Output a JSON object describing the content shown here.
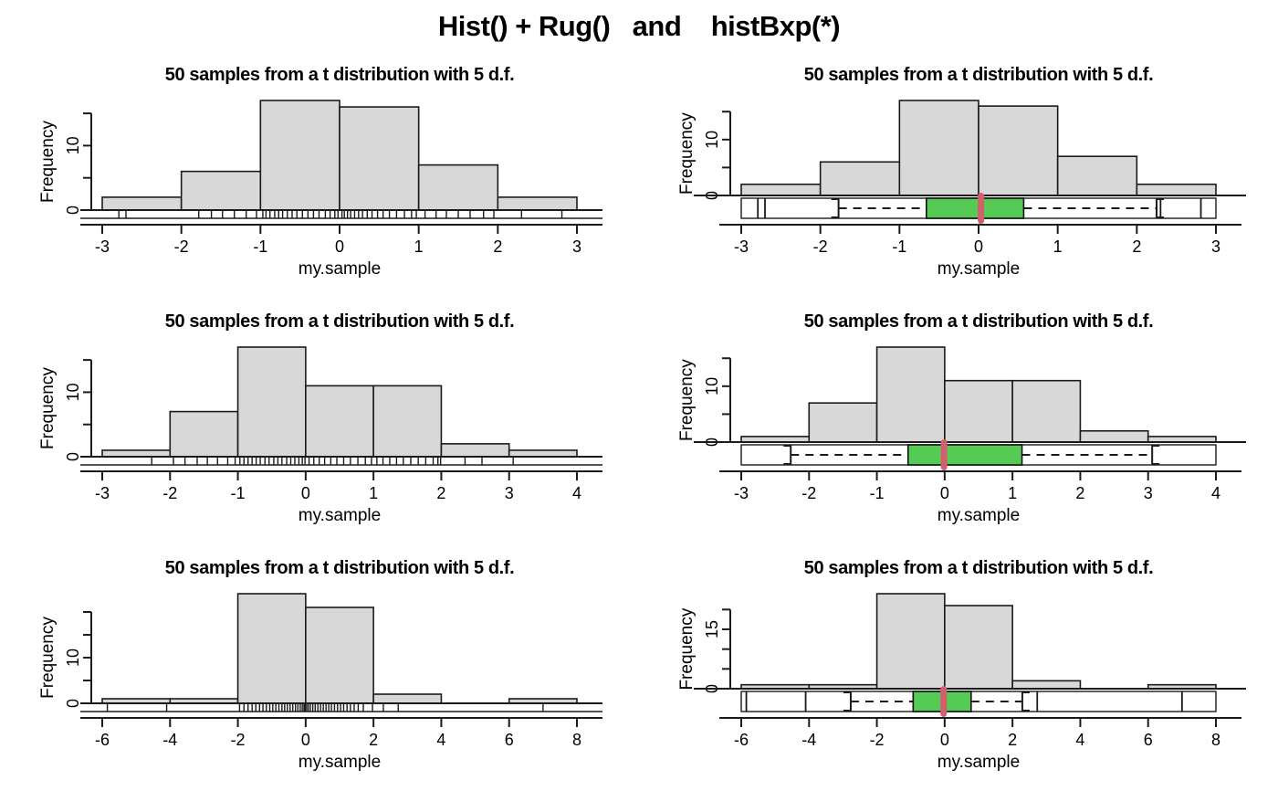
{
  "main_title": "Hist() + Rug()   and    histBxp(*)",
  "panel_title": "50 samples from a t distribution with 5 d.f.",
  "axes": {
    "xlabel": "my.sample",
    "ylabel": "Frequency"
  },
  "colors": {
    "background": "#ffffff",
    "bar_fill": "#d8d8d8",
    "bar_border": "#1b1b1b",
    "axis_color": "#1b1b1b",
    "box_fill": "#55cb55",
    "box_border": "#111111",
    "median_color": "#d25f6e",
    "range_box_fill": "#ffffff"
  },
  "chart_data": [
    {
      "id": "hist-rug-t5-row1",
      "type": "bar",
      "variant": "hist_rug",
      "row": 1,
      "col": 1,
      "title": "50 samples from a t distribution with 5 d.f.",
      "xlabel": "my.sample",
      "ylabel": "Frequency",
      "breaks": [
        -3,
        -2,
        -1,
        0,
        1,
        2,
        3
      ],
      "counts": [
        2,
        6,
        17,
        16,
        7,
        2
      ],
      "x_ticks": [
        -3,
        -2,
        -1,
        0,
        1,
        2,
        3
      ],
      "y_ticks": [
        0,
        5,
        10,
        15
      ],
      "y_tick_labels": [
        {
          "v": 0,
          "t": "0"
        },
        {
          "v": 10,
          "t": "10"
        }
      ],
      "y_max": 17,
      "samples": [
        -2.79,
        -2.7,
        -1.78,
        -1.62,
        -1.48,
        -1.33,
        -1.18,
        -1.05,
        -0.97,
        -0.93,
        -0.88,
        -0.82,
        -0.77,
        -0.72,
        -0.66,
        -0.6,
        -0.54,
        -0.47,
        -0.4,
        -0.33,
        -0.26,
        -0.18,
        -0.12,
        -0.06,
        -0.02,
        0.03,
        0.06,
        0.1,
        0.14,
        0.19,
        0.24,
        0.29,
        0.35,
        0.41,
        0.48,
        0.55,
        0.63,
        0.72,
        0.82,
        0.91,
        0.97,
        1.08,
        1.22,
        1.35,
        1.5,
        1.65,
        1.82,
        1.95,
        2.3,
        2.81
      ]
    },
    {
      "id": "histbxp-t5-row1",
      "type": "bar",
      "variant": "hist_boxplot",
      "row": 1,
      "col": 2,
      "title": "50 samples from a t distribution with 5 d.f.",
      "xlabel": "my.sample",
      "ylabel": "Frequency",
      "breaks": [
        -3,
        -2,
        -1,
        0,
        1,
        2,
        3
      ],
      "counts": [
        2,
        6,
        17,
        16,
        7,
        2
      ],
      "x_ticks": [
        -3,
        -2,
        -1,
        0,
        1,
        2,
        3
      ],
      "y_ticks": [
        0,
        5,
        10,
        15
      ],
      "y_tick_labels": [
        {
          "v": 0,
          "t": "0"
        },
        {
          "v": 10,
          "t": "10"
        }
      ],
      "y_max": 17,
      "boxplot": {
        "range": [
          -3,
          3
        ],
        "whisker_lo": -1.77,
        "q1": -0.66,
        "median": 0.03,
        "q3": 0.57,
        "whisker_hi": 2.25,
        "outliers": [
          -2.79,
          -2.7,
          2.3,
          2.81
        ]
      }
    },
    {
      "id": "hist-rug-t5-row2",
      "type": "bar",
      "variant": "hist_rug",
      "row": 2,
      "col": 1,
      "title": "50 samples from a t distribution with 5 d.f.",
      "xlabel": "my.sample",
      "ylabel": "Frequency",
      "breaks": [
        -3,
        -2,
        -1,
        0,
        1,
        2,
        3,
        4
      ],
      "counts": [
        1,
        7,
        17,
        11,
        11,
        2,
        1
      ],
      "x_ticks": [
        -3,
        -2,
        -1,
        0,
        1,
        2,
        3,
        4
      ],
      "y_ticks": [
        0,
        5,
        10,
        15
      ],
      "y_tick_labels": [
        {
          "v": 0,
          "t": "0"
        },
        {
          "v": 10,
          "t": "10"
        }
      ],
      "y_max": 17,
      "samples": [
        -2.27,
        -1.95,
        -1.78,
        -1.6,
        -1.45,
        -1.3,
        -1.15,
        -1.04,
        -0.97,
        -0.91,
        -0.85,
        -0.79,
        -0.73,
        -0.67,
        -0.6,
        -0.54,
        -0.47,
        -0.41,
        -0.35,
        -0.28,
        -0.22,
        -0.16,
        -0.1,
        -0.05,
        -0.01,
        0.05,
        0.12,
        0.2,
        0.28,
        0.37,
        0.46,
        0.56,
        0.66,
        0.77,
        0.88,
        0.97,
        1.05,
        1.14,
        1.24,
        1.34,
        1.44,
        1.55,
        1.66,
        1.77,
        1.88,
        1.95,
        1.99,
        2.35,
        2.6,
        3.06
      ]
    },
    {
      "id": "histbxp-t5-row2",
      "type": "bar",
      "variant": "hist_boxplot",
      "row": 2,
      "col": 2,
      "title": "50 samples from a t distribution with 5 d.f.",
      "xlabel": "my.sample",
      "ylabel": "Frequency",
      "breaks": [
        -3,
        -2,
        -1,
        0,
        1,
        2,
        3,
        4
      ],
      "counts": [
        1,
        7,
        17,
        11,
        11,
        2,
        1
      ],
      "x_ticks": [
        -3,
        -2,
        -1,
        0,
        1,
        2,
        3,
        4
      ],
      "y_ticks": [
        0,
        5,
        10,
        15
      ],
      "y_tick_labels": [
        {
          "v": 0,
          "t": "0"
        },
        {
          "v": 10,
          "t": "10"
        }
      ],
      "y_max": 17,
      "boxplot": {
        "range": [
          -3,
          4
        ],
        "whisker_lo": -2.27,
        "q1": -0.54,
        "median": -0.01,
        "q3": 1.14,
        "whisker_hi": 3.06,
        "outliers": []
      }
    },
    {
      "id": "hist-rug-t5-row3",
      "type": "bar",
      "variant": "hist_rug",
      "row": 3,
      "col": 1,
      "title": "50 samples from a t distribution with 5 d.f.",
      "xlabel": "my.sample",
      "ylabel": "Frequency",
      "breaks": [
        -6,
        -4,
        -2,
        0,
        2,
        4,
        6,
        8
      ],
      "counts": [
        1,
        1,
        24,
        21,
        2,
        0,
        1
      ],
      "x_ticks": [
        -6,
        -4,
        -2,
        0,
        2,
        4,
        6,
        8
      ],
      "y_ticks": [
        0,
        5,
        10,
        15,
        20
      ],
      "y_tick_labels": [
        {
          "v": 0,
          "t": "0"
        },
        {
          "v": 10,
          "t": "10"
        }
      ],
      "y_max": 24,
      "samples": [
        -5.85,
        -4.1,
        -1.95,
        -1.82,
        -1.7,
        -1.58,
        -1.47,
        -1.36,
        -1.26,
        -1.16,
        -1.06,
        -0.97,
        -0.88,
        -0.79,
        -0.7,
        -0.62,
        -0.54,
        -0.46,
        -0.38,
        -0.3,
        -0.23,
        -0.16,
        -0.1,
        -0.05,
        -0.02,
        -0.01,
        0.03,
        0.08,
        0.14,
        0.21,
        0.28,
        0.36,
        0.44,
        0.52,
        0.6,
        0.68,
        0.76,
        0.85,
        0.94,
        1.03,
        1.12,
        1.22,
        1.32,
        1.43,
        1.55,
        1.7,
        1.97,
        2.29,
        2.73,
        7.0
      ]
    },
    {
      "id": "histbxp-t5-row3",
      "type": "bar",
      "variant": "hist_boxplot",
      "row": 3,
      "col": 2,
      "title": "50 samples from a t distribution with 5 d.f.",
      "xlabel": "my.sample",
      "ylabel": "Frequency",
      "breaks": [
        -6,
        -4,
        -2,
        0,
        2,
        4,
        6,
        8
      ],
      "counts": [
        1,
        1,
        24,
        21,
        2,
        0,
        1
      ],
      "x_ticks": [
        -6,
        -4,
        -2,
        0,
        2,
        4,
        6,
        8
      ],
      "y_ticks": [
        0,
        5,
        10,
        15,
        20
      ],
      "y_tick_labels": [
        {
          "v": 0,
          "t": "0"
        },
        {
          "v": 15,
          "t": "15"
        }
      ],
      "y_max": 24,
      "boxplot": {
        "range": [
          -6,
          8
        ],
        "whisker_lo": -2.77,
        "q1": -0.93,
        "median": -0.03,
        "q3": 0.78,
        "whisker_hi": 2.29,
        "outliers": [
          -5.85,
          -4.1,
          2.73,
          7.0
        ]
      }
    }
  ]
}
